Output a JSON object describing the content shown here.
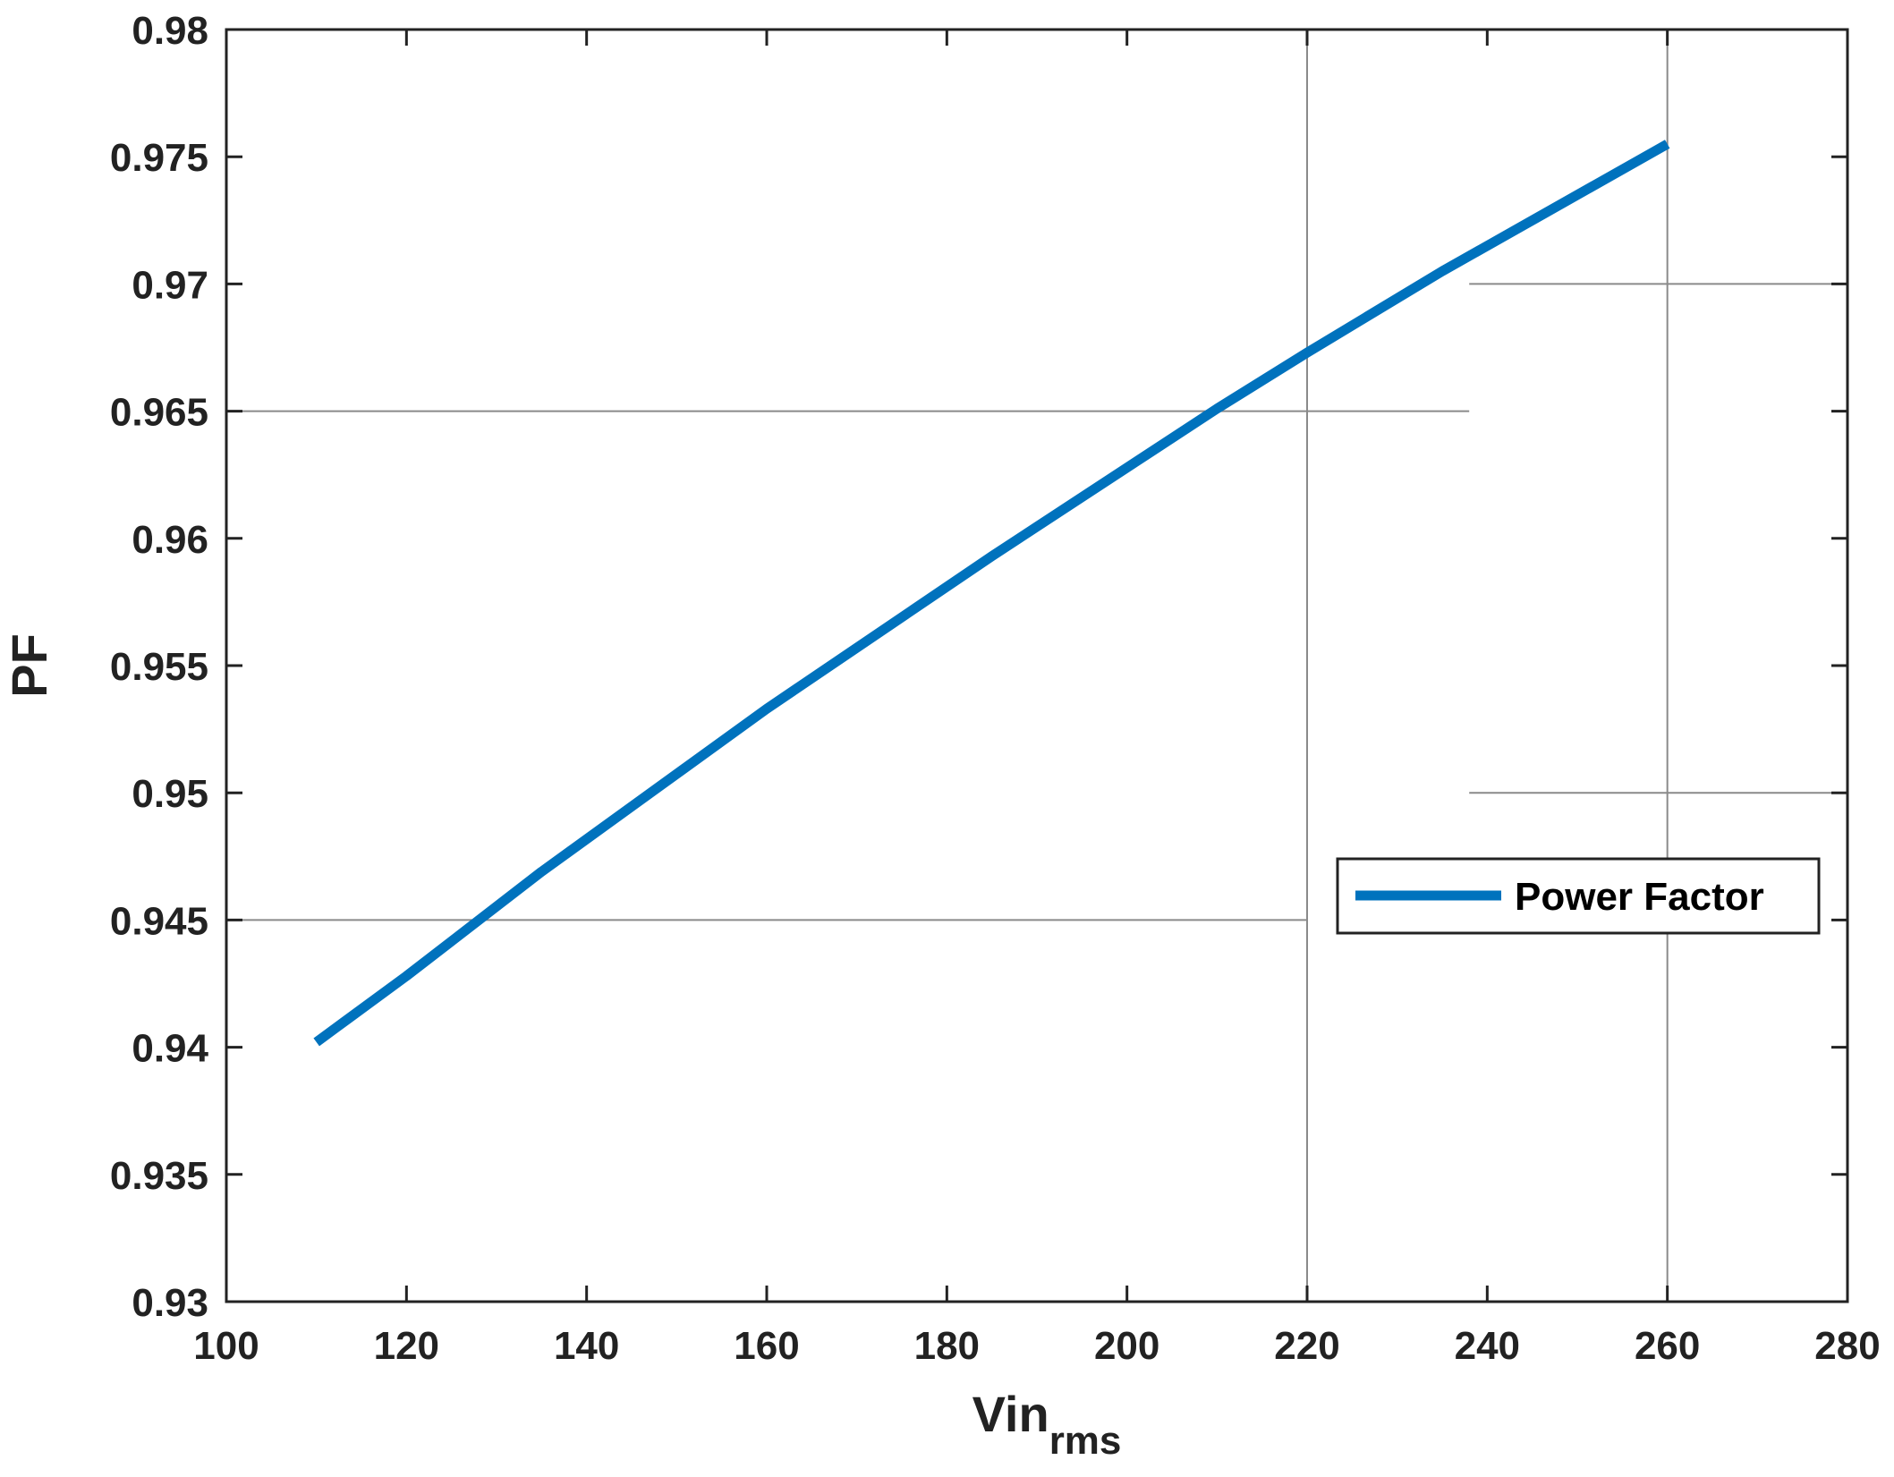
{
  "chart_data": {
    "type": "line",
    "xlabel": "Vin",
    "xlabel_subscript": "rms",
    "ylabel": "PF",
    "xlim": [
      100,
      280
    ],
    "ylim": [
      0.93,
      0.98
    ],
    "x_ticks": [
      "100",
      "120",
      "140",
      "160",
      "180",
      "200",
      "220",
      "240",
      "260",
      "280"
    ],
    "y_ticks": [
      "0.93",
      "0.935",
      "0.94",
      "0.945",
      "0.95",
      "0.955",
      "0.96",
      "0.965",
      "0.97",
      "0.975",
      "0.98"
    ],
    "grid": "partial",
    "legend_position": "right",
    "series": [
      {
        "name": "Power Factor",
        "color": "#0072BD",
        "x": [
          110,
          120,
          135,
          160,
          185,
          210,
          220,
          235,
          245,
          260
        ],
        "y": [
          0.9402,
          0.9428,
          0.9469,
          0.9533,
          0.9593,
          0.9651,
          0.9673,
          0.9705,
          0.9725,
          0.9755
        ]
      }
    ],
    "reference_lines": {
      "vertical": [
        220,
        260
      ],
      "horizontal": [
        {
          "y": 0.965,
          "x_range": [
            100,
            238
          ]
        },
        {
          "y": 0.97,
          "x_range": [
            238,
            280
          ]
        },
        {
          "y": 0.95,
          "x_range": [
            238,
            280
          ]
        },
        {
          "y": 0.945,
          "x_range": [
            100,
            220
          ]
        }
      ]
    }
  }
}
